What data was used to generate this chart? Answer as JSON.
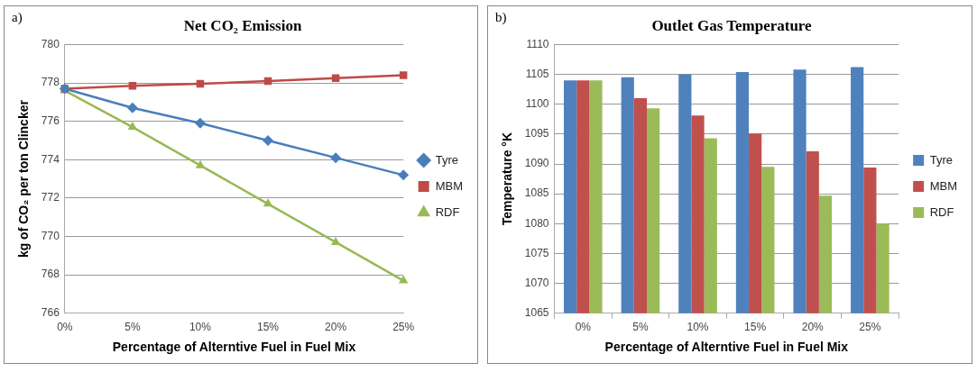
{
  "chart_data": [
    {
      "type": "line",
      "title": "Net CO₂ Emission",
      "xlabel": "Percentage of Alterntive Fuel in Fuel Mix",
      "ylabel": "kg of CO₂ per ton Clincker",
      "annotations": [
        "a)"
      ],
      "categories": [
        "0%",
        "5%",
        "10%",
        "15%",
        "20%",
        "25%"
      ],
      "ylim": [
        766,
        780
      ],
      "yticks": [
        766,
        768,
        770,
        772,
        774,
        776,
        778,
        780
      ],
      "grid": "y",
      "legend": "right",
      "series": [
        {
          "name": "Tyre",
          "color": "#4a7ebb",
          "marker": "diamond",
          "values": [
            777.7,
            776.7,
            775.9,
            775.0,
            774.1,
            773.2
          ]
        },
        {
          "name": "MBM",
          "color": "#be4b48",
          "marker": "square",
          "values": [
            777.7,
            777.85,
            777.95,
            778.1,
            778.25,
            778.4
          ]
        },
        {
          "name": "RDF",
          "color": "#98b954",
          "marker": "triangle",
          "values": [
            777.6,
            775.7,
            773.7,
            771.7,
            769.7,
            767.7
          ]
        }
      ]
    },
    {
      "type": "bar",
      "title": "Outlet Gas Temperature",
      "xlabel": "Percentage of Alterntive Fuel in Fuel Mix",
      "ylabel": "Temperature °K",
      "annotations": [
        "b)"
      ],
      "categories": [
        "0%",
        "5%",
        "10%",
        "15%",
        "20%",
        "25%"
      ],
      "ylim": [
        1065,
        1110
      ],
      "yticks": [
        1065,
        1070,
        1075,
        1080,
        1085,
        1090,
        1095,
        1100,
        1105,
        1110
      ],
      "grid": "y",
      "legend": "right",
      "series": [
        {
          "name": "Tyre",
          "color": "#4f81bd",
          "values": [
            1104,
            1104.5,
            1105,
            1105.4,
            1105.8,
            1106.2
          ]
        },
        {
          "name": "MBM",
          "color": "#c0504d",
          "values": [
            1104,
            1101,
            1098.1,
            1095.1,
            1092.1,
            1089.4
          ]
        },
        {
          "name": "RDF",
          "color": "#9bbb59",
          "values": [
            1104,
            1099.3,
            1094.3,
            1089.5,
            1084.7,
            1080
          ]
        }
      ]
    }
  ]
}
